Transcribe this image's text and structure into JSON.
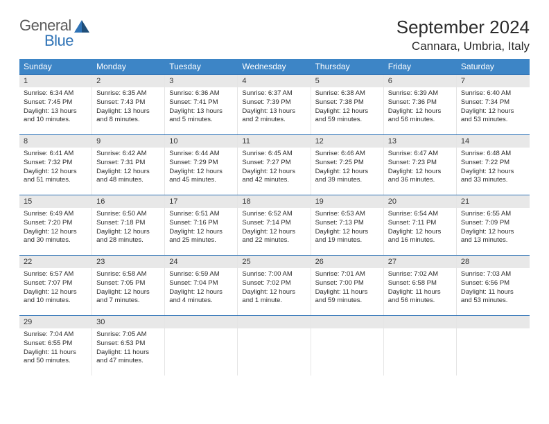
{
  "brand": {
    "part1": "General",
    "part2": "Blue"
  },
  "title": "September 2024",
  "location": "Cannara, Umbria, Italy",
  "colors": {
    "header_bg": "#3d85c6",
    "header_text": "#ffffff",
    "daynum_bg": "#e8e8e8",
    "week_border": "#2f73b6",
    "logo_blue": "#2f73b6",
    "logo_gray": "#5b5b5b",
    "text": "#2b2b2b"
  },
  "weekdays": [
    "Sunday",
    "Monday",
    "Tuesday",
    "Wednesday",
    "Thursday",
    "Friday",
    "Saturday"
  ],
  "weeks": [
    [
      {
        "num": "1",
        "sunrise": "Sunrise: 6:34 AM",
        "sunset": "Sunset: 7:45 PM",
        "day1": "Daylight: 13 hours",
        "day2": "and 10 minutes."
      },
      {
        "num": "2",
        "sunrise": "Sunrise: 6:35 AM",
        "sunset": "Sunset: 7:43 PM",
        "day1": "Daylight: 13 hours",
        "day2": "and 8 minutes."
      },
      {
        "num": "3",
        "sunrise": "Sunrise: 6:36 AM",
        "sunset": "Sunset: 7:41 PM",
        "day1": "Daylight: 13 hours",
        "day2": "and 5 minutes."
      },
      {
        "num": "4",
        "sunrise": "Sunrise: 6:37 AM",
        "sunset": "Sunset: 7:39 PM",
        "day1": "Daylight: 13 hours",
        "day2": "and 2 minutes."
      },
      {
        "num": "5",
        "sunrise": "Sunrise: 6:38 AM",
        "sunset": "Sunset: 7:38 PM",
        "day1": "Daylight: 12 hours",
        "day2": "and 59 minutes."
      },
      {
        "num": "6",
        "sunrise": "Sunrise: 6:39 AM",
        "sunset": "Sunset: 7:36 PM",
        "day1": "Daylight: 12 hours",
        "day2": "and 56 minutes."
      },
      {
        "num": "7",
        "sunrise": "Sunrise: 6:40 AM",
        "sunset": "Sunset: 7:34 PM",
        "day1": "Daylight: 12 hours",
        "day2": "and 53 minutes."
      }
    ],
    [
      {
        "num": "8",
        "sunrise": "Sunrise: 6:41 AM",
        "sunset": "Sunset: 7:32 PM",
        "day1": "Daylight: 12 hours",
        "day2": "and 51 minutes."
      },
      {
        "num": "9",
        "sunrise": "Sunrise: 6:42 AM",
        "sunset": "Sunset: 7:31 PM",
        "day1": "Daylight: 12 hours",
        "day2": "and 48 minutes."
      },
      {
        "num": "10",
        "sunrise": "Sunrise: 6:44 AM",
        "sunset": "Sunset: 7:29 PM",
        "day1": "Daylight: 12 hours",
        "day2": "and 45 minutes."
      },
      {
        "num": "11",
        "sunrise": "Sunrise: 6:45 AM",
        "sunset": "Sunset: 7:27 PM",
        "day1": "Daylight: 12 hours",
        "day2": "and 42 minutes."
      },
      {
        "num": "12",
        "sunrise": "Sunrise: 6:46 AM",
        "sunset": "Sunset: 7:25 PM",
        "day1": "Daylight: 12 hours",
        "day2": "and 39 minutes."
      },
      {
        "num": "13",
        "sunrise": "Sunrise: 6:47 AM",
        "sunset": "Sunset: 7:23 PM",
        "day1": "Daylight: 12 hours",
        "day2": "and 36 minutes."
      },
      {
        "num": "14",
        "sunrise": "Sunrise: 6:48 AM",
        "sunset": "Sunset: 7:22 PM",
        "day1": "Daylight: 12 hours",
        "day2": "and 33 minutes."
      }
    ],
    [
      {
        "num": "15",
        "sunrise": "Sunrise: 6:49 AM",
        "sunset": "Sunset: 7:20 PM",
        "day1": "Daylight: 12 hours",
        "day2": "and 30 minutes."
      },
      {
        "num": "16",
        "sunrise": "Sunrise: 6:50 AM",
        "sunset": "Sunset: 7:18 PM",
        "day1": "Daylight: 12 hours",
        "day2": "and 28 minutes."
      },
      {
        "num": "17",
        "sunrise": "Sunrise: 6:51 AM",
        "sunset": "Sunset: 7:16 PM",
        "day1": "Daylight: 12 hours",
        "day2": "and 25 minutes."
      },
      {
        "num": "18",
        "sunrise": "Sunrise: 6:52 AM",
        "sunset": "Sunset: 7:14 PM",
        "day1": "Daylight: 12 hours",
        "day2": "and 22 minutes."
      },
      {
        "num": "19",
        "sunrise": "Sunrise: 6:53 AM",
        "sunset": "Sunset: 7:13 PM",
        "day1": "Daylight: 12 hours",
        "day2": "and 19 minutes."
      },
      {
        "num": "20",
        "sunrise": "Sunrise: 6:54 AM",
        "sunset": "Sunset: 7:11 PM",
        "day1": "Daylight: 12 hours",
        "day2": "and 16 minutes."
      },
      {
        "num": "21",
        "sunrise": "Sunrise: 6:55 AM",
        "sunset": "Sunset: 7:09 PM",
        "day1": "Daylight: 12 hours",
        "day2": "and 13 minutes."
      }
    ],
    [
      {
        "num": "22",
        "sunrise": "Sunrise: 6:57 AM",
        "sunset": "Sunset: 7:07 PM",
        "day1": "Daylight: 12 hours",
        "day2": "and 10 minutes."
      },
      {
        "num": "23",
        "sunrise": "Sunrise: 6:58 AM",
        "sunset": "Sunset: 7:05 PM",
        "day1": "Daylight: 12 hours",
        "day2": "and 7 minutes."
      },
      {
        "num": "24",
        "sunrise": "Sunrise: 6:59 AM",
        "sunset": "Sunset: 7:04 PM",
        "day1": "Daylight: 12 hours",
        "day2": "and 4 minutes."
      },
      {
        "num": "25",
        "sunrise": "Sunrise: 7:00 AM",
        "sunset": "Sunset: 7:02 PM",
        "day1": "Daylight: 12 hours",
        "day2": "and 1 minute."
      },
      {
        "num": "26",
        "sunrise": "Sunrise: 7:01 AM",
        "sunset": "Sunset: 7:00 PM",
        "day1": "Daylight: 11 hours",
        "day2": "and 59 minutes."
      },
      {
        "num": "27",
        "sunrise": "Sunrise: 7:02 AM",
        "sunset": "Sunset: 6:58 PM",
        "day1": "Daylight: 11 hours",
        "day2": "and 56 minutes."
      },
      {
        "num": "28",
        "sunrise": "Sunrise: 7:03 AM",
        "sunset": "Sunset: 6:56 PM",
        "day1": "Daylight: 11 hours",
        "day2": "and 53 minutes."
      }
    ],
    [
      {
        "num": "29",
        "sunrise": "Sunrise: 7:04 AM",
        "sunset": "Sunset: 6:55 PM",
        "day1": "Daylight: 11 hours",
        "day2": "and 50 minutes."
      },
      {
        "num": "30",
        "sunrise": "Sunrise: 7:05 AM",
        "sunset": "Sunset: 6:53 PM",
        "day1": "Daylight: 11 hours",
        "day2": "and 47 minutes."
      },
      {
        "num": "",
        "sunrise": "",
        "sunset": "",
        "day1": "",
        "day2": "",
        "empty": true
      },
      {
        "num": "",
        "sunrise": "",
        "sunset": "",
        "day1": "",
        "day2": "",
        "empty": true
      },
      {
        "num": "",
        "sunrise": "",
        "sunset": "",
        "day1": "",
        "day2": "",
        "empty": true
      },
      {
        "num": "",
        "sunrise": "",
        "sunset": "",
        "day1": "",
        "day2": "",
        "empty": true
      },
      {
        "num": "",
        "sunrise": "",
        "sunset": "",
        "day1": "",
        "day2": "",
        "empty": true
      }
    ]
  ]
}
